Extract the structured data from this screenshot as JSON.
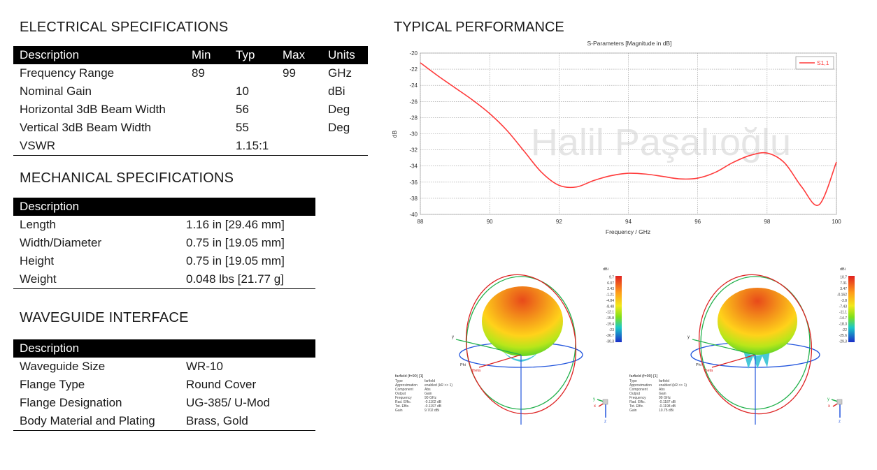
{
  "electrical": {
    "title": "ELECTRICAL SPECIFICATIONS",
    "headers": [
      "Description",
      "Min",
      "Typ",
      "Max",
      "Units"
    ],
    "rows": [
      [
        "Frequency Range",
        "89",
        "",
        "99",
        "GHz"
      ],
      [
        "Nominal Gain",
        "",
        "10",
        "",
        "dBi"
      ],
      [
        "Horizontal 3dB Beam Width",
        "",
        "56",
        "",
        "Deg"
      ],
      [
        "Vertical 3dB Beam Width",
        "",
        "55",
        "",
        "Deg"
      ],
      [
        "VSWR",
        "",
        "1.15:1",
        "",
        ""
      ]
    ]
  },
  "mechanical": {
    "title": "MECHANICAL SPECIFICATIONS",
    "header": "Description",
    "rows": [
      [
        "Length",
        "1.16 in [29.46 mm]"
      ],
      [
        "Width/Diameter",
        "0.75 in [19.05 mm]"
      ],
      [
        "Height",
        "0.75 in [19.05 mm]"
      ],
      [
        "Weight",
        "0.048 lbs [21.77 g]"
      ]
    ]
  },
  "waveguide": {
    "title": "WAVEGUIDE INTERFACE",
    "header": "Description",
    "rows": [
      [
        "Waveguide Size",
        "WR-10"
      ],
      [
        "Flange Type",
        "Round Cover"
      ],
      [
        "Flange Designation",
        "UG-385/ U-Mod"
      ],
      [
        "Body Material and Plating",
        "Brass, Gold"
      ]
    ]
  },
  "performance": {
    "title": "TYPICAL PERFORMANCE",
    "watermark": "Halil Paşalıoğlu"
  },
  "chart_data": {
    "type": "line",
    "title": "S-Parameters [Magnitude in dB]",
    "xlabel": "Frequency / GHz",
    "ylabel": "dB",
    "xlim": [
      88,
      100
    ],
    "ylim": [
      -40,
      -20
    ],
    "xticks": [
      88,
      90,
      92,
      94,
      96,
      98,
      100
    ],
    "yticks": [
      -20,
      -22,
      -24,
      -26,
      -28,
      -30,
      -32,
      -34,
      -36,
      -38,
      -40
    ],
    "grid": true,
    "legend_position": "top-right",
    "color": "#ff3b3b",
    "series": [
      {
        "name": "S1,1",
        "x": [
          88,
          88.5,
          89,
          89.5,
          90,
          90.5,
          91,
          91.5,
          92,
          92.5,
          93,
          93.5,
          94,
          94.5,
          95,
          95.5,
          96,
          96.5,
          97,
          97.5,
          98,
          98.5,
          99,
          99.5,
          100
        ],
        "y": [
          -21.2,
          -22.8,
          -24.3,
          -25.8,
          -27.5,
          -29.6,
          -32.2,
          -34.8,
          -36.4,
          -36.6,
          -35.8,
          -35.2,
          -34.9,
          -35.0,
          -35.3,
          -35.6,
          -35.5,
          -34.8,
          -33.6,
          -32.7,
          -32.4,
          -33.6,
          -36.6,
          -38.8,
          -33.5
        ]
      }
    ]
  },
  "farfields": [
    {
      "title": "farfield (f=90) [1]",
      "scale_unit": "dBi",
      "scale_values": [
        "9.7",
        "6.07",
        "2.43",
        "-1.21",
        "-4.84",
        "-8.48",
        "-12.1",
        "-15.8",
        "-19.4",
        "-23",
        "-26.7",
        "-30.3"
      ],
      "info": [
        [
          "Type",
          "farfield"
        ],
        [
          "Approximation",
          "enabled (kR >> 1)"
        ],
        [
          "Component",
          "Abs"
        ],
        [
          "Output",
          "Gain"
        ],
        [
          "Frequency",
          "90 GHz"
        ],
        [
          "Rad. Effic.",
          "-0.1102 dB"
        ],
        [
          "Tot. Effic.",
          "-0.1197 dB"
        ],
        [
          "Gain",
          "9.702 dBi"
        ]
      ]
    },
    {
      "title": "farfield (f=99) [1]",
      "scale_unit": "dBi",
      "scale_values": [
        "10.7",
        "7.31",
        "3.47",
        "-0.162",
        "-3.8",
        "-7.43",
        "-11.1",
        "-14.7",
        "-18.3",
        "-22",
        "-25.6",
        "-29.3"
      ],
      "info": [
        [
          "Type",
          "farfield"
        ],
        [
          "Approximation",
          "enabled (kR >> 1)"
        ],
        [
          "Component",
          "Abs"
        ],
        [
          "Output",
          "Gain"
        ],
        [
          "Frequency",
          "99 GHz"
        ],
        [
          "Rad. Effic.",
          "-0.1187 dB"
        ],
        [
          "Tot. Effic.",
          "-0.1198 dB"
        ],
        [
          "Gain",
          "10.75 dBi"
        ]
      ]
    }
  ],
  "axis_labels": {
    "x": "x",
    "y": "y",
    "z": "z",
    "phi": "Phi",
    "theta": "theta"
  }
}
